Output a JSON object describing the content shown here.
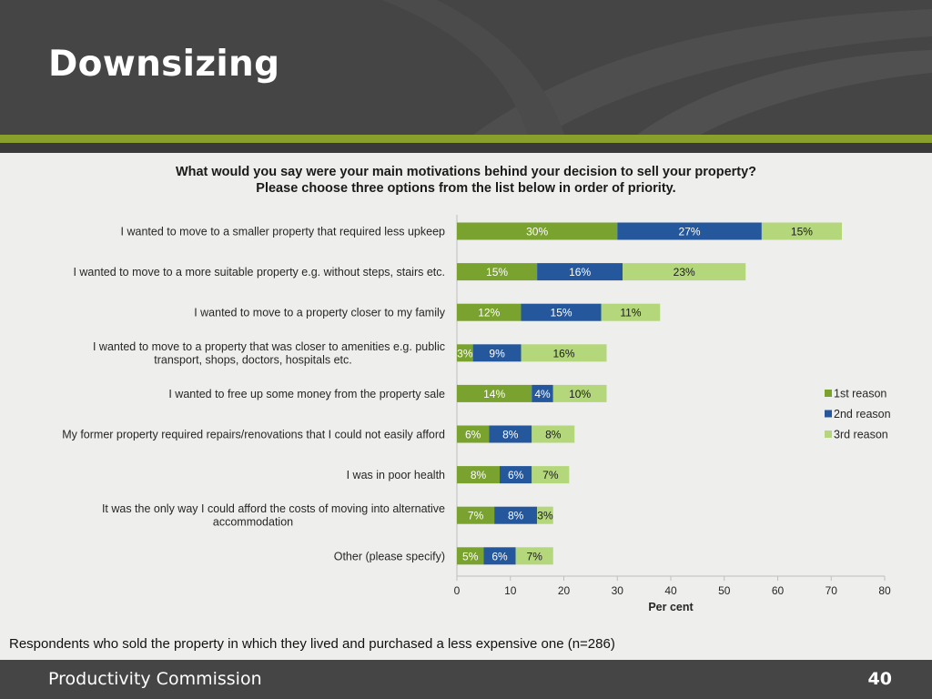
{
  "slide": {
    "title": "Downsizing",
    "footnote": "Respondents who sold the property in which they lived and purchased a less expensive one (n=286)",
    "footer_org": "Productivity Commission",
    "page_number": "40"
  },
  "colors": {
    "header_bg": "#454545",
    "accent_green": "#8aa02d",
    "series_1st": "#7aa22f",
    "series_2nd": "#25579c",
    "series_3rd": "#b4d77b"
  },
  "chart_data": {
    "type": "bar",
    "orientation": "horizontal",
    "stacked": true,
    "title_lines": [
      "What would you say were your main motivations behind your decision to sell your property?",
      "Please choose three options from the list below in order of priority."
    ],
    "categories": [
      [
        "I wanted to move to a smaller property that required less upkeep"
      ],
      [
        "I wanted to move to a more suitable property e.g. without steps, stairs etc."
      ],
      [
        "I wanted to move to a property closer to my family"
      ],
      [
        "I wanted to move to a property that was closer to amenities e.g. public",
        "transport, shops, doctors, hospitals etc."
      ],
      [
        "I wanted to free up some money from the property sale"
      ],
      [
        "My former property required repairs/renovations that I could not easily afford"
      ],
      [
        "I was in poor health"
      ],
      [
        "It was the only way I could afford the costs of moving into alternative",
        "accommodation"
      ],
      [
        "Other (please specify)"
      ]
    ],
    "series": [
      {
        "name": "1st reason",
        "color": "#7aa22f",
        "label_color": "#ffffff",
        "values": [
          30,
          15,
          12,
          3,
          14,
          6,
          8,
          7,
          5
        ],
        "labels": [
          "30%",
          "15%",
          "12%",
          "3%",
          "14%",
          "6%",
          "8%",
          "7%",
          "5%"
        ]
      },
      {
        "name": "2nd reason",
        "color": "#25579c",
        "label_color": "#ffffff",
        "values": [
          27,
          16,
          15,
          9,
          4,
          8,
          6,
          8,
          6
        ],
        "labels": [
          "27%",
          "16%",
          "15%",
          "9%",
          "4%",
          "8%",
          "6%",
          "8%",
          "6%"
        ]
      },
      {
        "name": "3rd reason",
        "color": "#b4d77b",
        "label_color": "#1a1a1a",
        "values": [
          15,
          23,
          11,
          16,
          10,
          8,
          7,
          3,
          7
        ],
        "labels": [
          "15%",
          "23%",
          "11%",
          "16%",
          "10%",
          "8%",
          "7%",
          "3%",
          "7%"
        ]
      }
    ],
    "xlabel": "Per cent",
    "xlim": [
      0,
      80
    ],
    "xticks": [
      "0",
      "10",
      "20",
      "30",
      "40",
      "50",
      "60",
      "70",
      "80"
    ],
    "grid": false,
    "legend_position": "right"
  }
}
